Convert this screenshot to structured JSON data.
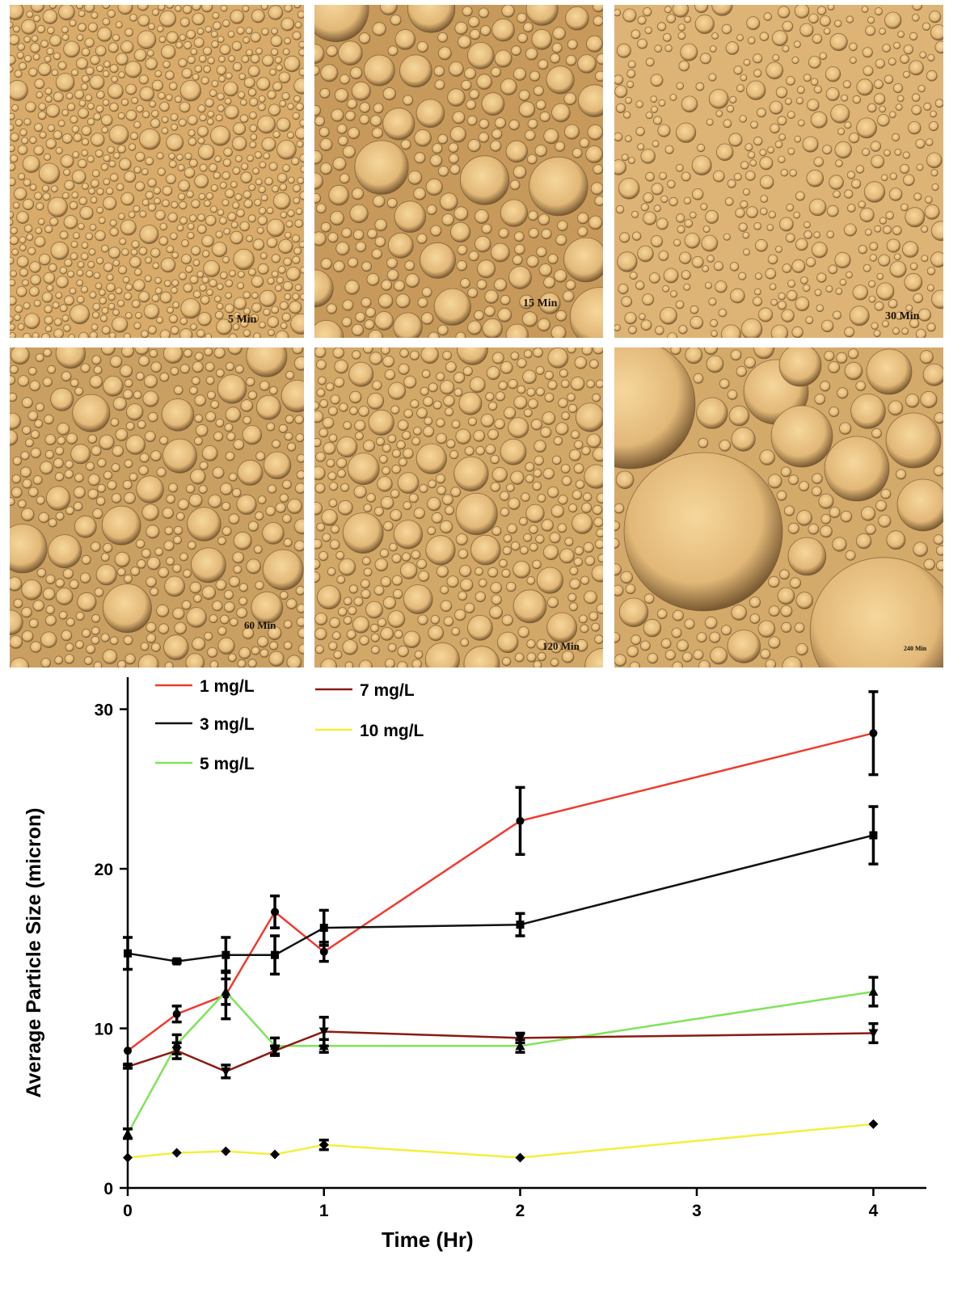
{
  "panels": [
    {
      "label": "5 Min"
    },
    {
      "label": "15 Min"
    },
    {
      "label": "30 Min"
    },
    {
      "label": "60 Min"
    },
    {
      "label": "120 Min"
    },
    {
      "label": "240 Min"
    }
  ],
  "chart_data": {
    "type": "line",
    "xlabel": "Time (Hr)",
    "ylabel": "Average Particle Size (micron)",
    "xlim": [
      0,
      4.3
    ],
    "ylim": [
      0,
      31.5
    ],
    "x_ticks": [
      0,
      1,
      2,
      3,
      4
    ],
    "y_ticks": [
      0,
      10,
      20,
      30
    ],
    "x_tick_labels": [
      "0",
      "1",
      "2",
      "3",
      "4"
    ],
    "y_tick_labels": [
      "0",
      "10",
      "20",
      "30"
    ],
    "x_break": {
      "between": [
        2,
        4
      ],
      "plotted_as": 2.9
    },
    "legend_position": "top-left",
    "grid": false,
    "series": [
      {
        "name": "1 mg/L",
        "color": "#ee3b2e",
        "marker": "circle",
        "x": [
          0,
          0.25,
          0.5,
          0.75,
          1,
          2,
          4
        ],
        "y": [
          8.6,
          10.9,
          12.1,
          17.3,
          14.8,
          23.0,
          28.5
        ],
        "err": [
          0,
          0.5,
          1.5,
          1.0,
          0.6,
          2.1,
          2.6
        ]
      },
      {
        "name": "3 mg/L",
        "color": "#111111",
        "marker": "square",
        "x": [
          0,
          0.25,
          0.5,
          0.75,
          1,
          2,
          4
        ],
        "y": [
          14.7,
          14.2,
          14.6,
          14.6,
          16.3,
          16.5,
          22.1
        ],
        "err": [
          1.0,
          0.1,
          1.1,
          1.2,
          1.1,
          0.7,
          1.8
        ]
      },
      {
        "name": "5 mg/L",
        "color": "#7fe35a",
        "marker": "triangle-up",
        "x": [
          0,
          0.25,
          0.5,
          0.75,
          1,
          2,
          4
        ],
        "y": [
          3.4,
          9.0,
          12.3,
          8.9,
          8.9,
          8.9,
          12.3
        ],
        "err": [
          0.3,
          0.6,
          0.8,
          0.5,
          0.4,
          0.4,
          0.9
        ]
      },
      {
        "name": "7 mg/L",
        "color": "#8b1a12",
        "marker": "triangle-down",
        "x": [
          0,
          0.25,
          0.5,
          0.75,
          1,
          2,
          4
        ],
        "y": [
          7.6,
          8.6,
          7.3,
          8.6,
          9.8,
          9.4,
          9.7
        ],
        "err": [
          0.1,
          0.5,
          0.4,
          0.3,
          0.9,
          0.3,
          0.6
        ]
      },
      {
        "name": "10 mg/L",
        "color": "#f4ef3c",
        "marker": "diamond",
        "x": [
          0,
          0.25,
          0.5,
          0.75,
          1,
          2,
          4
        ],
        "y": [
          1.9,
          2.2,
          2.3,
          2.1,
          2.7,
          1.9,
          4.0
        ],
        "err": [
          0,
          0,
          0,
          0,
          0.3,
          0,
          0
        ]
      }
    ]
  }
}
